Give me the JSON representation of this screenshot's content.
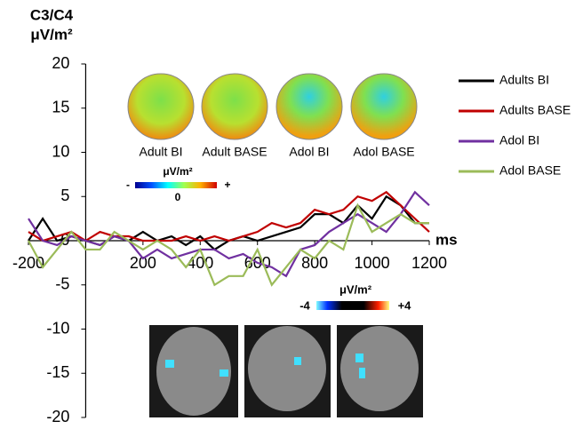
{
  "chart_data": {
    "type": "line",
    "y_label": [
      "C3/C4",
      "μV/m²"
    ],
    "x_label": "ms",
    "x": [
      -200,
      -150,
      -100,
      -50,
      0,
      50,
      100,
      150,
      200,
      250,
      300,
      350,
      400,
      450,
      500,
      550,
      600,
      650,
      700,
      750,
      800,
      850,
      900,
      950,
      1000,
      1050,
      1100,
      1150,
      1200
    ],
    "series": [
      {
        "name": "Adults BI",
        "color": "#000000",
        "values": [
          0,
          2.5,
          0,
          0.5,
          0,
          -0.5,
          0.5,
          0,
          1,
          0,
          0.5,
          -0.5,
          0.5,
          -1,
          0,
          0.5,
          0,
          0.5,
          1,
          1.5,
          3,
          3,
          2,
          4,
          2.5,
          5,
          4,
          2,
          2
        ]
      },
      {
        "name": "Adults BASE",
        "color": "#c00000",
        "values": [
          1,
          0,
          0.5,
          1,
          0,
          1,
          0.5,
          0.5,
          0,
          0,
          0,
          0.5,
          0,
          0.5,
          0,
          0.5,
          1,
          2,
          1.5,
          2,
          3.5,
          3,
          3.5,
          5,
          4.5,
          5.5,
          4,
          2.5,
          1
        ]
      },
      {
        "name": "Adol BI",
        "color": "#7030a0",
        "values": [
          2.5,
          0,
          -0.5,
          0.5,
          0,
          -0.5,
          0.5,
          0,
          -2,
          -1,
          -2,
          -1.5,
          -1,
          -1,
          -2,
          -1.5,
          -2.5,
          -3,
          -4,
          -1,
          -0.5,
          1,
          2,
          3,
          2,
          1,
          3,
          5.5,
          4
        ]
      },
      {
        "name": "Adol BASE",
        "color": "#9bbb59",
        "values": [
          0,
          -3,
          -1,
          1,
          -1,
          -1,
          1,
          0,
          -1,
          0,
          -1,
          -3,
          -1,
          -5,
          -4,
          -4,
          -1,
          -5,
          -3,
          -1,
          -2,
          0,
          -1,
          4,
          1,
          2,
          3,
          2,
          2
        ]
      }
    ],
    "xlim": [
      -200,
      1200
    ],
    "ylim": [
      -20,
      20
    ],
    "xticks": [
      -200,
      200,
      400,
      600,
      800,
      1000,
      1200
    ],
    "yticks": [
      -20,
      -15,
      -10,
      -5,
      0,
      5,
      10,
      15,
      20
    ]
  },
  "topomaps": {
    "labels": [
      "Adult BI",
      "Adult BASE",
      "Adol BI",
      "Adol BASE"
    ],
    "colorbar": {
      "title": "μV/m²",
      "min_label": "-",
      "mid_label": "0",
      "max_label": "+"
    }
  },
  "brain_slices": {
    "colorbar": {
      "title": "μV/m²",
      "min_label": "-4",
      "max_label": "+4"
    }
  }
}
